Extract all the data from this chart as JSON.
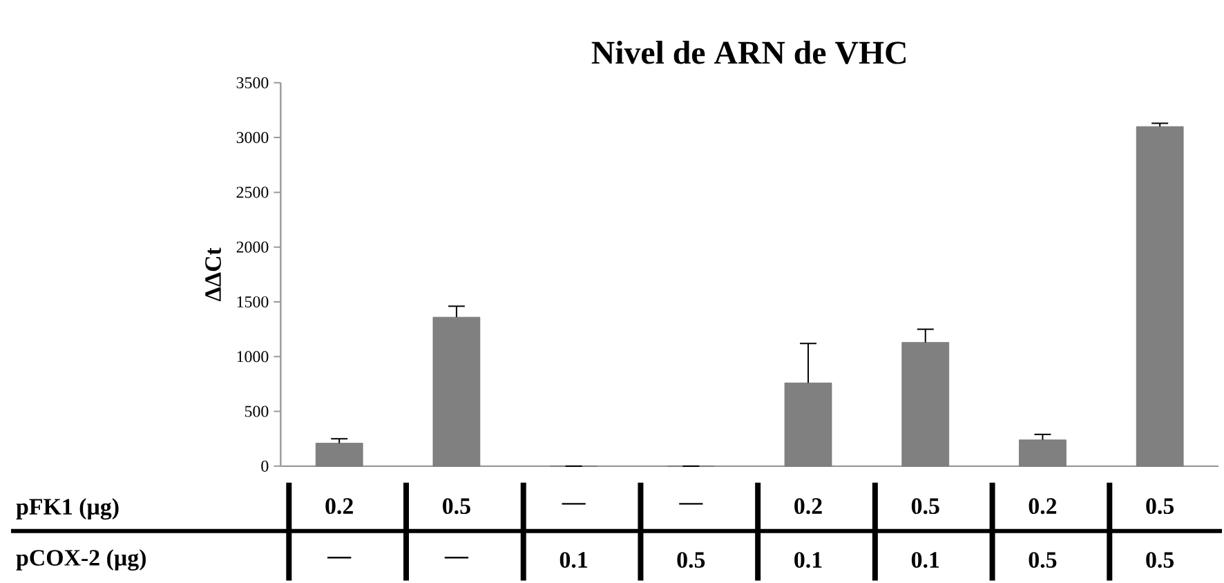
{
  "chart_data": {
    "type": "bar",
    "title": "Nivel de ARN de VHC",
    "ylabel": "ΔΔCt",
    "categories": [
      "0.2",
      "0.5",
      "—",
      "—",
      "0.2",
      "0.5",
      "0.2",
      "0.5"
    ],
    "values": [
      210,
      1360,
      0,
      0,
      760,
      1130,
      240,
      3100
    ],
    "errors": [
      [
        210,
        250
      ],
      [
        1360,
        1460
      ],
      null,
      null,
      [
        760,
        1120
      ],
      [
        1130,
        1250
      ],
      [
        240,
        290
      ],
      [
        3100,
        3130
      ]
    ],
    "color": "#808080",
    "ylim": [
      0,
      3500
    ],
    "yticks": [
      0,
      500,
      1000,
      1500,
      2000,
      2500,
      3000,
      3500
    ],
    "grid": false,
    "annotations": [
      "pFK1 (µg)",
      "pCOX-2 (µg)",
      "—",
      "—",
      "0.1",
      "0.5",
      "0.1",
      "0.1",
      "0.5",
      "0.5"
    ]
  }
}
